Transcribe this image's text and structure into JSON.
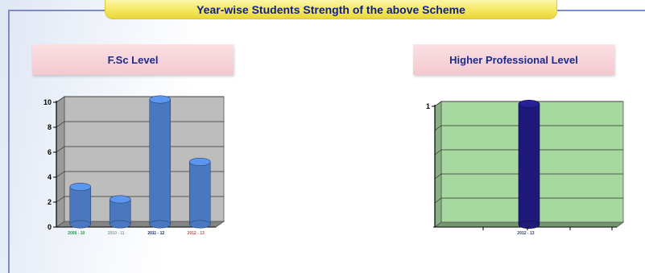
{
  "banner": {
    "title": "Year-wise Students Strength of the above Scheme"
  },
  "colors": {
    "frame": "#7d8cc4",
    "banner_fill": "#f3e65a",
    "banner_text": "#0d1f8a",
    "label_fill": "#f2c9cf",
    "label_text": "#1c2a8a",
    "fsc_plot_bg": "#bdbdbd",
    "fsc_bar": "#4a78c0",
    "hpl_plot_bg": "#a6d8a0",
    "hpl_bar": "#1f1a7a"
  },
  "chart_data": [
    {
      "type": "bar",
      "title": "F.Sc Level",
      "categories": [
        "2009 - 10",
        "2010 - 11",
        "2011 - 12",
        "2012 - 13"
      ],
      "category_colors": [
        "#1a9a4a",
        "#8a9aa8",
        "#1c2a6a",
        "#d04a4a"
      ],
      "values": [
        3,
        2,
        10,
        5
      ],
      "yticks": [
        "0",
        "2",
        "4",
        "6",
        "8",
        "10"
      ],
      "ylim": [
        0,
        10
      ],
      "grid": true,
      "three_d": true
    },
    {
      "type": "bar",
      "title": "Higher Professional Level",
      "categories": [
        "2012 - 13"
      ],
      "category_colors": [
        "#2a3a8a"
      ],
      "values": [
        1
      ],
      "yticks": [
        "1"
      ],
      "ylim": [
        0,
        1
      ],
      "grid": true,
      "three_d": true
    }
  ]
}
